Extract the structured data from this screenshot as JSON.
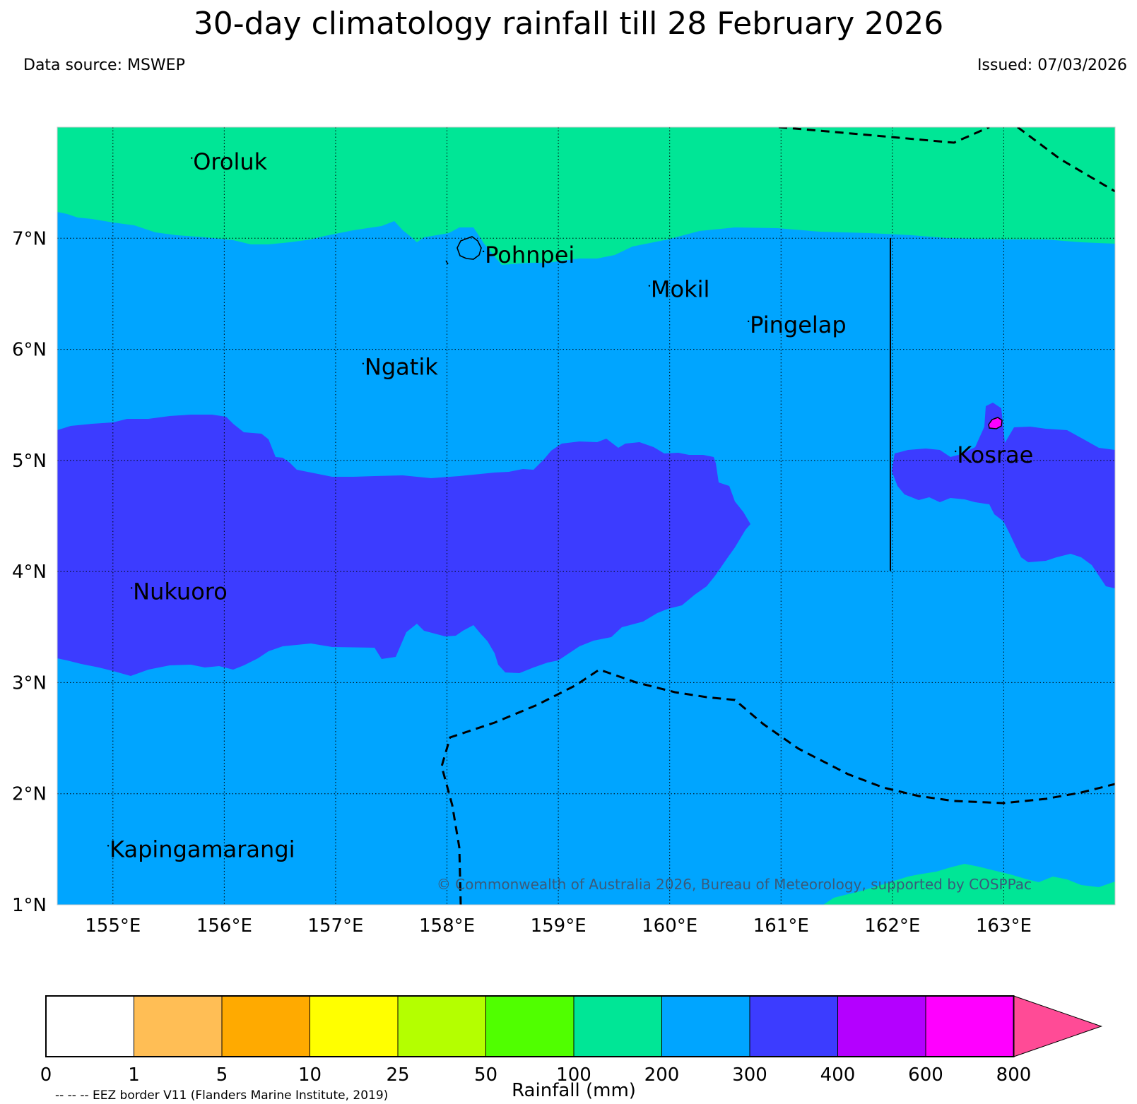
{
  "title": "30-day climatology rainfall till 28 February 2026",
  "data_source": "Data source: MSWEP",
  "issued": "Issued: 07/03/2026",
  "copyright": "© Commonwealth of Australia 2026, Bureau of Meteorology, supported by COSPPac",
  "eez_note": "-- -- -- EEZ border V11 (Flanders Marine Institute, 2019)",
  "map": {
    "lon_range": [
      154.5,
      164.0
    ],
    "lat_range": [
      1.0,
      8.0
    ],
    "lon_ticks": [
      {
        "value": 155,
        "label": "155°E"
      },
      {
        "value": 156,
        "label": "156°E"
      },
      {
        "value": 157,
        "label": "157°E"
      },
      {
        "value": 158,
        "label": "158°E"
      },
      {
        "value": 159,
        "label": "159°E"
      },
      {
        "value": 160,
        "label": "160°E"
      },
      {
        "value": 161,
        "label": "161°E"
      },
      {
        "value": 162,
        "label": "162°E"
      },
      {
        "value": 163,
        "label": "163°E"
      }
    ],
    "lat_ticks": [
      {
        "value": 1,
        "label": "1°N"
      },
      {
        "value": 2,
        "label": "2°N"
      },
      {
        "value": 3,
        "label": "3°N"
      },
      {
        "value": 4,
        "label": "4°N"
      },
      {
        "value": 5,
        "label": "5°N"
      },
      {
        "value": 6,
        "label": "6°N"
      },
      {
        "value": 7,
        "label": "7°N"
      }
    ],
    "places": [
      {
        "name": "Oroluk",
        "lon": 155.72,
        "lat": 7.62
      },
      {
        "name": "Pohnpei",
        "lon": 158.34,
        "lat": 6.78
      },
      {
        "name": "Mokil",
        "lon": 159.83,
        "lat": 6.47
      },
      {
        "name": "Pingelap",
        "lon": 160.72,
        "lat": 6.15
      },
      {
        "name": "Ngatik",
        "lon": 157.26,
        "lat": 5.77
      },
      {
        "name": "Kosrae",
        "lon": 162.58,
        "lat": 4.98
      },
      {
        "name": "Nukuoro",
        "lon": 155.18,
        "lat": 3.75
      },
      {
        "name": "Kapingamarangi",
        "lon": 154.97,
        "lat": 1.43
      }
    ]
  },
  "legend": {
    "title": "Rainfall (mm)",
    "ticks": [
      "0",
      "1",
      "5",
      "10",
      "25",
      "50",
      "100",
      "200",
      "300",
      "400",
      "600",
      "800"
    ],
    "colors": [
      "#ffffff",
      "#ffbe55",
      "#ffaa00",
      "#ffff00",
      "#b4ff00",
      "#50ff00",
      "#00e696",
      "#00a5ff",
      "#3c3cff",
      "#b400ff",
      "#ff00ff"
    ],
    "extend_color": "#ff4b96"
  },
  "colors": {
    "band_100_200": "#00e696",
    "band_200_300": "#00a5ff",
    "band_300_400": "#3c3cff",
    "band_600_800": "#ff00ff"
  }
}
